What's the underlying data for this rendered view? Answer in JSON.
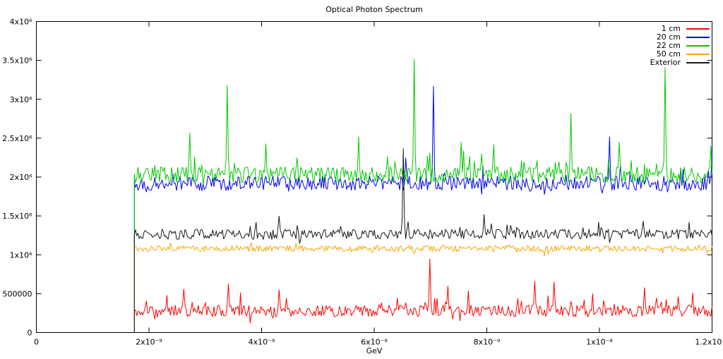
{
  "chart_data": {
    "type": "line",
    "title": "Optical Photon Spectrum",
    "xlabel": "GeV",
    "ylabel": "",
    "xlim": [
      0,
      1.2e-08
    ],
    "ylim": [
      0,
      4000000
    ],
    "grid": false,
    "legend_position": "top-right",
    "x_ticks": [
      {
        "value": 0,
        "label": "0"
      },
      {
        "value": 2e-09,
        "label": "2x10⁻⁹"
      },
      {
        "value": 4e-09,
        "label": "4x10⁻⁹"
      },
      {
        "value": 6e-09,
        "label": "6x10⁻⁹"
      },
      {
        "value": 8e-09,
        "label": "8x10⁻⁹"
      },
      {
        "value": 1e-08,
        "label": "1x10⁻⁸"
      },
      {
        "value": 1.2e-08,
        "label": "1.2x10⁻⁸"
      }
    ],
    "y_ticks": [
      {
        "value": 0,
        "label": "0"
      },
      {
        "value": 500000,
        "label": "500000"
      },
      {
        "value": 1000000,
        "label": "1x10⁶"
      },
      {
        "value": 1500000,
        "label": "1.5x10⁶"
      },
      {
        "value": 2000000,
        "label": "2x10⁶"
      },
      {
        "value": 2500000,
        "label": "2.5x10⁶"
      },
      {
        "value": 3000000,
        "label": "3x10⁶"
      },
      {
        "value": 3500000,
        "label": "3.5x10⁶"
      },
      {
        "value": 4000000,
        "label": "4x10⁶"
      }
    ],
    "onset_x": 1.74e-09,
    "points_per_series": 480,
    "series": [
      {
        "name": "1 cm",
        "color": "#ff0000",
        "baseline": 280000,
        "noise_amp": 75000,
        "p_up": 0.1,
        "up_scale": 3.0,
        "seed": 11,
        "spikes": [
          [
            2.62e-09,
            560000
          ],
          [
            3.42e-09,
            630000
          ],
          [
            4.3e-09,
            550000
          ],
          [
            6.98e-09,
            950000
          ],
          [
            7.3e-09,
            600000
          ],
          [
            8.85e-09,
            660000
          ],
          [
            9.2e-09,
            650000
          ],
          [
            1.08e-08,
            580000
          ]
        ]
      },
      {
        "name": "20 cm",
        "color": "#0000ee",
        "baseline": 1920000,
        "noise_amp": 95000,
        "p_up": 0.06,
        "up_scale": 2.0,
        "seed": 22,
        "spikes": [
          [
            6.55e-09,
            2250000
          ],
          [
            7.05e-09,
            3170000
          ],
          [
            1.019e-08,
            2520000
          ],
          [
            1.199e-08,
            2300000
          ]
        ]
      },
      {
        "name": "22 cm",
        "color": "#00c800",
        "baseline": 2030000,
        "noise_amp": 105000,
        "p_up": 0.08,
        "up_scale": 2.2,
        "seed": 33,
        "spikes": [
          [
            2.72e-09,
            2570000
          ],
          [
            3.4e-09,
            3180000
          ],
          [
            4.08e-09,
            2430000
          ],
          [
            5.72e-09,
            2520000
          ],
          [
            6.7e-09,
            3520000
          ],
          [
            7.55e-09,
            2450000
          ],
          [
            8.12e-09,
            2420000
          ],
          [
            9.49e-09,
            2820000
          ],
          [
            1.035e-08,
            2450000
          ],
          [
            1.117e-08,
            3410000
          ],
          [
            1.198e-08,
            2400000
          ]
        ]
      },
      {
        "name": "50 cm",
        "color": "#ffa500",
        "baseline": 1080000,
        "noise_amp": 40000,
        "p_up": 0.05,
        "up_scale": 1.5,
        "seed": 44,
        "spikes": []
      },
      {
        "name": "Exterior",
        "color": "#1a1a1a",
        "baseline": 1265000,
        "noise_amp": 65000,
        "p_up": 0.07,
        "up_scale": 1.9,
        "seed": 55,
        "spikes": [
          [
            4.3e-09,
            1500000
          ],
          [
            6.52e-09,
            2370000
          ],
          [
            7.95e-09,
            1520000
          ]
        ]
      }
    ]
  }
}
